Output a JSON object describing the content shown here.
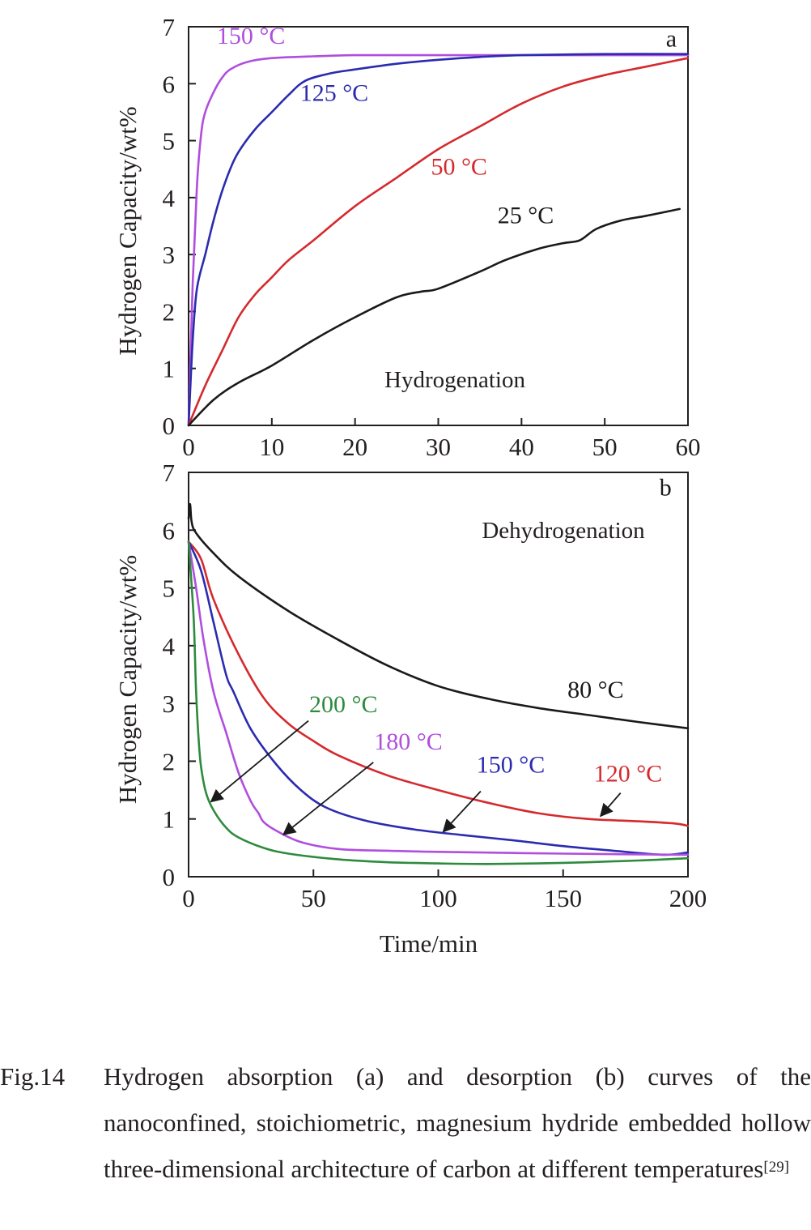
{
  "figure": {
    "label": "Fig.14",
    "caption": "Hydrogen absorption (a) and desorption (b) curves of the nanoconfined, stoichiometric, magnesium hydride embedded hollow three-dimensional architecture of carbon at different temperatures",
    "reference": "[29]"
  },
  "colors": {
    "black": "#1a1a1a",
    "red": "#d42a2e",
    "blue": "#2b2bb0",
    "purple": "#b04ede",
    "green": "#2e8b3e"
  },
  "chart_data": [
    {
      "type": "line",
      "panel": "a",
      "title": "Hydrogenation",
      "xlabel": "",
      "ylabel": "Hydrogen Capacity/wt%",
      "xlim": [
        0,
        60
      ],
      "ylim": [
        0,
        7
      ],
      "xticks": [
        0,
        10,
        20,
        30,
        40,
        50,
        60
      ],
      "yticks": [
        0,
        1,
        2,
        3,
        4,
        5,
        6,
        7
      ],
      "series": [
        {
          "name": "150 °C",
          "color": "purple",
          "x": [
            0,
            0.5,
            1,
            1.5,
            2,
            3,
            4,
            5,
            7,
            10,
            15,
            20,
            30,
            40,
            50,
            60
          ],
          "y": [
            0,
            2.5,
            4.2,
            5.1,
            5.5,
            5.85,
            6.1,
            6.25,
            6.38,
            6.45,
            6.48,
            6.5,
            6.5,
            6.5,
            6.5,
            6.5
          ]
        },
        {
          "name": "125 °C",
          "color": "blue",
          "x": [
            0,
            0.5,
            1,
            2,
            3,
            4,
            5,
            6,
            8,
            10,
            12,
            14,
            17,
            20,
            25,
            30,
            35,
            40,
            50,
            60
          ],
          "y": [
            0,
            1.5,
            2.4,
            3.0,
            3.6,
            4.1,
            4.5,
            4.8,
            5.2,
            5.5,
            5.8,
            6.05,
            6.18,
            6.25,
            6.35,
            6.42,
            6.47,
            6.5,
            6.52,
            6.52
          ]
        },
        {
          "name": "50 °C",
          "color": "red",
          "x": [
            0,
            2,
            4,
            6,
            8,
            10,
            12,
            15,
            20,
            25,
            30,
            35,
            40,
            45,
            50,
            55,
            60
          ],
          "y": [
            0,
            0.7,
            1.3,
            1.9,
            2.3,
            2.6,
            2.9,
            3.25,
            3.85,
            4.35,
            4.85,
            5.25,
            5.65,
            5.95,
            6.15,
            6.3,
            6.45
          ]
        },
        {
          "name": "25 °C",
          "color": "black",
          "x": [
            0,
            3,
            6,
            10,
            15,
            20,
            25,
            28,
            30,
            35,
            38,
            42,
            45,
            47,
            49,
            52,
            55,
            59
          ],
          "y": [
            0,
            0.45,
            0.75,
            1.05,
            1.5,
            1.9,
            2.25,
            2.35,
            2.4,
            2.7,
            2.9,
            3.1,
            3.2,
            3.25,
            3.45,
            3.6,
            3.68,
            3.8
          ]
        }
      ],
      "annotations": [
        {
          "text": "150 °C",
          "color": "purple",
          "x": 7.5,
          "y": 6.7
        },
        {
          "text": "125 °C",
          "color": "blue",
          "x": 17.5,
          "y": 5.7
        },
        {
          "text": "50 °C",
          "color": "red",
          "x": 32.5,
          "y": 4.4
        },
        {
          "text": "25 °C",
          "color": "black",
          "x": 40.5,
          "y": 3.55
        },
        {
          "text": "a",
          "color": "black",
          "x": 58,
          "y": 6.65
        }
      ]
    },
    {
      "type": "line",
      "panel": "b",
      "title": "Dehydrogenation",
      "xlabel": "Time/min",
      "ylabel": "Hydrogen Capacity/wt%",
      "xlim": [
        0,
        200
      ],
      "ylim": [
        0,
        7
      ],
      "xticks": [
        0,
        50,
        100,
        150,
        200
      ],
      "yticks": [
        0,
        1,
        2,
        3,
        4,
        5,
        6,
        7
      ],
      "series": [
        {
          "name": "80 °C",
          "color": "black",
          "x": [
            0,
            0.6,
            1.2,
            3,
            10,
            20,
            40,
            60,
            80,
            100,
            120,
            140,
            160,
            180,
            200
          ],
          "y": [
            6.2,
            6.45,
            6.15,
            5.95,
            5.6,
            5.2,
            4.6,
            4.1,
            3.65,
            3.3,
            3.08,
            2.92,
            2.8,
            2.68,
            2.57
          ]
        },
        {
          "name": "120 °C",
          "color": "red",
          "x": [
            0,
            5,
            10,
            20,
            30,
            40,
            50,
            60,
            80,
            100,
            120,
            140,
            160,
            180,
            195,
            200
          ],
          "y": [
            5.8,
            5.5,
            4.8,
            3.85,
            3.1,
            2.65,
            2.35,
            2.1,
            1.75,
            1.5,
            1.28,
            1.1,
            1.0,
            0.96,
            0.92,
            0.88
          ]
        },
        {
          "name": "150 °C",
          "color": "blue",
          "x": [
            0,
            5,
            10,
            15,
            18,
            25,
            35,
            45,
            55,
            70,
            90,
            110,
            130,
            150,
            170,
            190,
            200
          ],
          "y": [
            5.8,
            5.3,
            4.4,
            3.5,
            3.2,
            2.55,
            1.95,
            1.5,
            1.2,
            0.98,
            0.82,
            0.72,
            0.63,
            0.53,
            0.45,
            0.38,
            0.42
          ]
        },
        {
          "name": "180 °C",
          "color": "purple",
          "x": [
            0,
            3,
            6,
            10,
            15,
            20,
            25,
            28,
            30,
            35,
            45,
            60,
            80,
            100,
            150,
            200
          ],
          "y": [
            5.8,
            5.0,
            4.1,
            3.2,
            2.5,
            1.8,
            1.3,
            1.1,
            0.95,
            0.8,
            0.6,
            0.48,
            0.45,
            0.43,
            0.4,
            0.38
          ]
        },
        {
          "name": "200 °C",
          "color": "green",
          "x": [
            0,
            2,
            3,
            4,
            5,
            7,
            10,
            15,
            20,
            30,
            40,
            60,
            80,
            100,
            120,
            150,
            180,
            200
          ],
          "y": [
            5.8,
            4.5,
            3.2,
            2.4,
            1.9,
            1.45,
            1.15,
            0.85,
            0.68,
            0.5,
            0.4,
            0.3,
            0.25,
            0.23,
            0.22,
            0.24,
            0.28,
            0.32
          ]
        }
      ],
      "annotations": [
        {
          "text": "80 °C",
          "color": "black",
          "x": 163,
          "y": 3.1
        },
        {
          "text": "120 °C",
          "color": "red",
          "x": 176,
          "y": 1.65
        },
        {
          "text": "150 °C",
          "color": "blue",
          "x": 129,
          "y": 1.8
        },
        {
          "text": "180 °C",
          "color": "purple",
          "x": 88,
          "y": 2.2
        },
        {
          "text": "200 °C",
          "color": "green",
          "x": 62,
          "y": 2.85
        },
        {
          "text": "b",
          "color": "black",
          "x": 191,
          "y": 6.6
        }
      ],
      "arrows": [
        {
          "color": "black",
          "from": [
            48,
            2.7
          ],
          "to": [
            9,
            1.3
          ]
        },
        {
          "color": "black",
          "from": [
            74,
            1.98
          ],
          "to": [
            38,
            0.73
          ]
        },
        {
          "color": "black",
          "from": [
            117,
            1.48
          ],
          "to": [
            102,
            0.78
          ]
        },
        {
          "color": "black",
          "from": [
            173,
            1.45
          ],
          "to": [
            165,
            1.05
          ]
        }
      ]
    }
  ]
}
